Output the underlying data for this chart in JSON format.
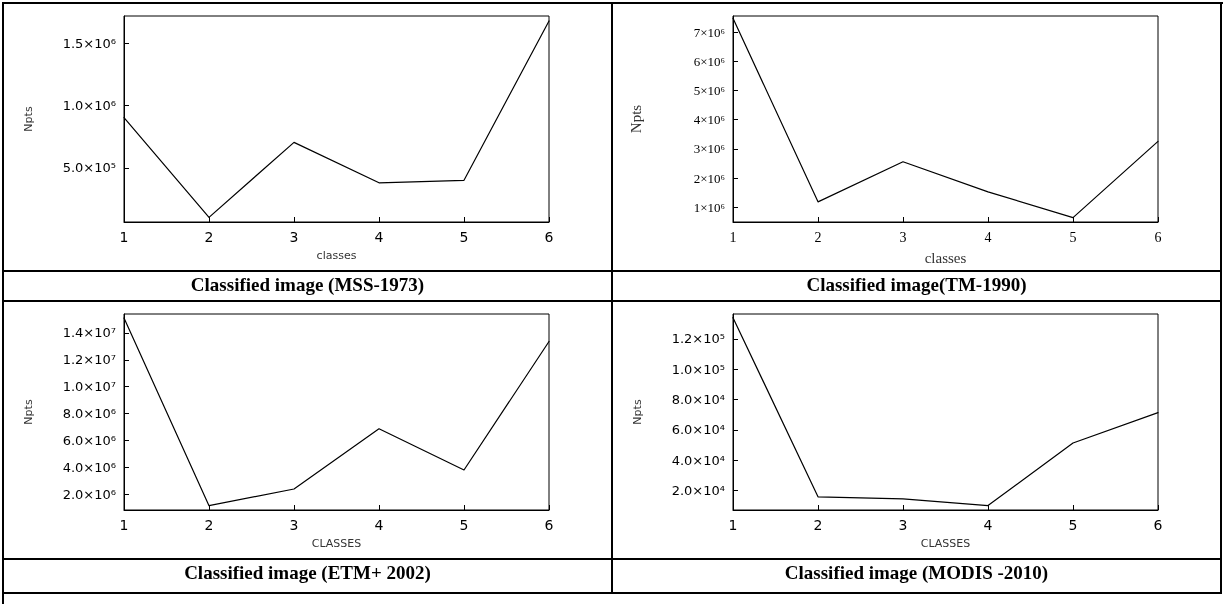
{
  "chart_data": [
    {
      "type": "line",
      "title": "Classified image (MSS-1973)",
      "xlabel": "classes",
      "ylabel": "Npts",
      "x": [
        1,
        2,
        3,
        4,
        5,
        6
      ],
      "series": [
        {
          "color": "#000000",
          "values": [
            903000,
            102000,
            705000,
            380000,
            400000,
            1680000
          ]
        }
      ],
      "xlim": [
        1,
        6
      ],
      "xticks": [
        1,
        2,
        3,
        4,
        5,
        6
      ],
      "ylim": [
        65000,
        1720000
      ],
      "yticks": [
        {
          "value": 500000,
          "label": "5.0×10⁵"
        },
        {
          "value": 1000000,
          "label": "1.0×10⁶"
        },
        {
          "value": 1500000,
          "label": "1.5×10⁶"
        }
      ],
      "grid": false,
      "marker": "none",
      "line_style": "solid"
    },
    {
      "type": "line",
      "title": "Classified image(TM-1990)",
      "xlabel": "classes",
      "ylabel": "Npts",
      "x": [
        1,
        2,
        3,
        4,
        5,
        6
      ],
      "series": [
        {
          "color": "#000000",
          "values": [
            7470000,
            1190000,
            2560000,
            1530000,
            650000,
            3260000
          ]
        }
      ],
      "xlim": [
        1,
        6
      ],
      "xticks": [
        1,
        2,
        3,
        4,
        5,
        6
      ],
      "ylim": [
        500000,
        7550000
      ],
      "yticks": [
        {
          "value": 1000000,
          "label": "1×10⁶"
        },
        {
          "value": 2000000,
          "label": "2×10⁶"
        },
        {
          "value": 3000000,
          "label": "3×10⁶"
        },
        {
          "value": 4000000,
          "label": "4×10⁶"
        },
        {
          "value": 5000000,
          "label": "5×10⁶"
        },
        {
          "value": 6000000,
          "label": "6×10⁶"
        },
        {
          "value": 7000000,
          "label": "7×10⁶"
        }
      ],
      "grid": false,
      "marker": "none",
      "line_style": "solid"
    },
    {
      "type": "line",
      "title": "Classified image (ETM+ 2002)",
      "xlabel": "CLASSES",
      "ylabel": "Npts",
      "x": [
        1,
        2,
        3,
        4,
        5,
        6
      ],
      "series": [
        {
          "color": "#000000",
          "values": [
            15100000,
            1170000,
            2410000,
            6880000,
            3820000,
            13360000
          ]
        }
      ],
      "xlim": [
        1,
        6
      ],
      "xticks": [
        1,
        2,
        3,
        4,
        5,
        6
      ],
      "ylim": [
        850000,
        15400000
      ],
      "yticks": [
        {
          "value": 2000000,
          "label": "2.0×10⁶"
        },
        {
          "value": 4000000,
          "label": "4.0×10⁶"
        },
        {
          "value": 6000000,
          "label": "6.0×10⁶"
        },
        {
          "value": 8000000,
          "label": "8.0×10⁶"
        },
        {
          "value": 10000000,
          "label": "1.0×10⁷"
        },
        {
          "value": 12000000,
          "label": "1.2×10⁷"
        },
        {
          "value": 14000000,
          "label": "1.4×10⁷"
        }
      ],
      "grid": false,
      "marker": "none",
      "line_style": "solid"
    },
    {
      "type": "line",
      "title": "Classified image (MODIS -2010)",
      "xlabel": "CLASSES",
      "ylabel": "Npts",
      "x": [
        1,
        2,
        3,
        4,
        5,
        6
      ],
      "series": [
        {
          "color": "#000000",
          "values": [
            134000,
            15800,
            14500,
            10000,
            51300,
            71300
          ]
        }
      ],
      "xlim": [
        1,
        6
      ],
      "xticks": [
        1,
        2,
        3,
        4,
        5,
        6
      ],
      "ylim": [
        7100,
        136400
      ],
      "yticks": [
        {
          "value": 20000,
          "label": "2.0×10⁴"
        },
        {
          "value": 40000,
          "label": "4.0×10⁴"
        },
        {
          "value": 60000,
          "label": "6.0×10⁴"
        },
        {
          "value": 80000,
          "label": "8.0×10⁴"
        },
        {
          "value": 100000,
          "label": "1.0×10⁵"
        },
        {
          "value": 120000,
          "label": "1.2×10⁵"
        }
      ],
      "grid": false,
      "marker": "none",
      "line_style": "solid"
    }
  ]
}
